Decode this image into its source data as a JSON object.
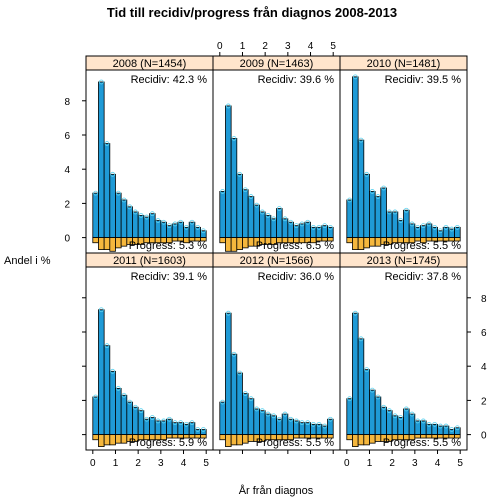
{
  "chart_data": {
    "type": "bar",
    "title": "Tid till recidiv/progress från diagnos 2008-2013",
    "xlabel": "År från diagnos",
    "ylabel": "Andel i %",
    "xlim": [
      -0.3,
      5.3
    ],
    "ylim": [
      -0.9,
      9.8
    ],
    "xticks": [
      "0",
      "1",
      "2",
      "3",
      "4",
      "5"
    ],
    "yticks": [
      "0",
      "2",
      "4",
      "6",
      "8"
    ],
    "bin_width": 0.25,
    "colors": {
      "recidiv": "#1f9ad6",
      "progress": "#f5b73d",
      "strip": "#ffe5cc",
      "point": "#5fd3f0"
    },
    "panels": [
      {
        "strip": "2008 (N=1454)",
        "recidiv_label": "Recidiv: 42.3 %",
        "progress_label": "Progress: 5.3 %",
        "recidiv": [
          2.6,
          9.1,
          5.5,
          3.7,
          2.6,
          2.2,
          1.8,
          1.5,
          1.3,
          1.2,
          1.4,
          1.0,
          0.9,
          0.7,
          0.8,
          0.9,
          0.6,
          0.9,
          0.6,
          0.4
        ],
        "progress": [
          0.3,
          0.7,
          0.7,
          0.8,
          0.6,
          0.5,
          0.4,
          0.4,
          0.4,
          0.3,
          0.3,
          0.3,
          0.3,
          0.3,
          0.2,
          0.2,
          0.3,
          0.2,
          0.2,
          0.2
        ]
      },
      {
        "strip": "2009 (N=1463)",
        "recidiv_label": "Recidiv: 39.6 %",
        "progress_label": "Progress: 6.5 %",
        "recidiv": [
          2.7,
          7.7,
          5.8,
          3.7,
          2.8,
          2.4,
          1.9,
          1.5,
          1.3,
          1.1,
          1.7,
          1.1,
          0.9,
          0.7,
          0.8,
          0.9,
          0.6,
          0.6,
          0.7,
          0.6
        ],
        "progress": [
          0.3,
          0.8,
          0.8,
          0.7,
          0.6,
          0.5,
          0.5,
          0.4,
          0.4,
          0.4,
          0.3,
          0.3,
          0.3,
          0.3,
          0.3,
          0.3,
          0.3,
          0.2,
          0.2,
          0.2
        ]
      },
      {
        "strip": "2010 (N=1481)",
        "recidiv_label": "Recidiv: 39.5 %",
        "progress_label": "Progress: 5.5 %",
        "recidiv": [
          2.2,
          9.4,
          5.7,
          3.7,
          2.7,
          2.4,
          2.9,
          1.5,
          1.5,
          1.0,
          1.6,
          0.8,
          0.6,
          0.7,
          0.8,
          0.6,
          0.4,
          0.6,
          0.5,
          0.6
        ],
        "progress": [
          0.3,
          0.7,
          0.7,
          0.6,
          0.5,
          0.5,
          0.4,
          0.4,
          0.3,
          0.3,
          0.3,
          0.3,
          0.2,
          0.3,
          0.2,
          0.2,
          0.2,
          0.2,
          0.2,
          0.2
        ]
      },
      {
        "strip": "2011 (N=1603)",
        "recidiv_label": "Recidiv: 39.1 %",
        "progress_label": "Progress: 5.9 %",
        "recidiv": [
          2.2,
          7.3,
          5.2,
          3.7,
          2.7,
          2.3,
          1.9,
          1.6,
          1.4,
          0.9,
          1.0,
          0.8,
          0.8,
          0.9,
          0.7,
          0.7,
          0.6,
          0.7,
          0.3,
          0.3
        ],
        "progress": [
          0.3,
          0.7,
          0.6,
          0.6,
          0.5,
          0.5,
          0.4,
          0.4,
          0.3,
          0.3,
          0.3,
          0.3,
          0.3,
          0.2,
          0.2,
          0.2,
          0.2,
          0.2,
          0.2,
          0.2
        ]
      },
      {
        "strip": "2012 (N=1566)",
        "recidiv_label": "Recidiv: 36.0 %",
        "progress_label": "Progress: 5.5 %",
        "recidiv": [
          1.9,
          7.1,
          4.7,
          3.6,
          2.4,
          2.1,
          1.5,
          1.4,
          1.2,
          1.1,
          0.9,
          1.2,
          0.9,
          0.8,
          0.7,
          0.7,
          0.6,
          0.6,
          0.5,
          0.9
        ],
        "progress": [
          0.3,
          0.7,
          0.6,
          0.6,
          0.5,
          0.4,
          0.4,
          0.4,
          0.3,
          0.3,
          0.3,
          0.3,
          0.3,
          0.2,
          0.2,
          0.2,
          0.2,
          0.2,
          0.2,
          0.2
        ]
      },
      {
        "strip": "2013 (N=1745)",
        "recidiv_label": "Recidiv: 37.8 %",
        "progress_label": "Progress: 5.5 %",
        "recidiv": [
          2.1,
          7.1,
          5.6,
          3.8,
          2.6,
          2.2,
          1.6,
          1.4,
          1.1,
          1.0,
          1.5,
          1.2,
          0.8,
          0.8,
          0.6,
          0.6,
          0.5,
          0.5,
          0.3,
          0.4
        ],
        "progress": [
          0.3,
          0.7,
          0.6,
          0.6,
          0.5,
          0.4,
          0.4,
          0.4,
          0.3,
          0.3,
          0.3,
          0.3,
          0.2,
          0.2,
          0.2,
          0.2,
          0.2,
          0.2,
          0.2,
          0.2
        ]
      }
    ]
  }
}
